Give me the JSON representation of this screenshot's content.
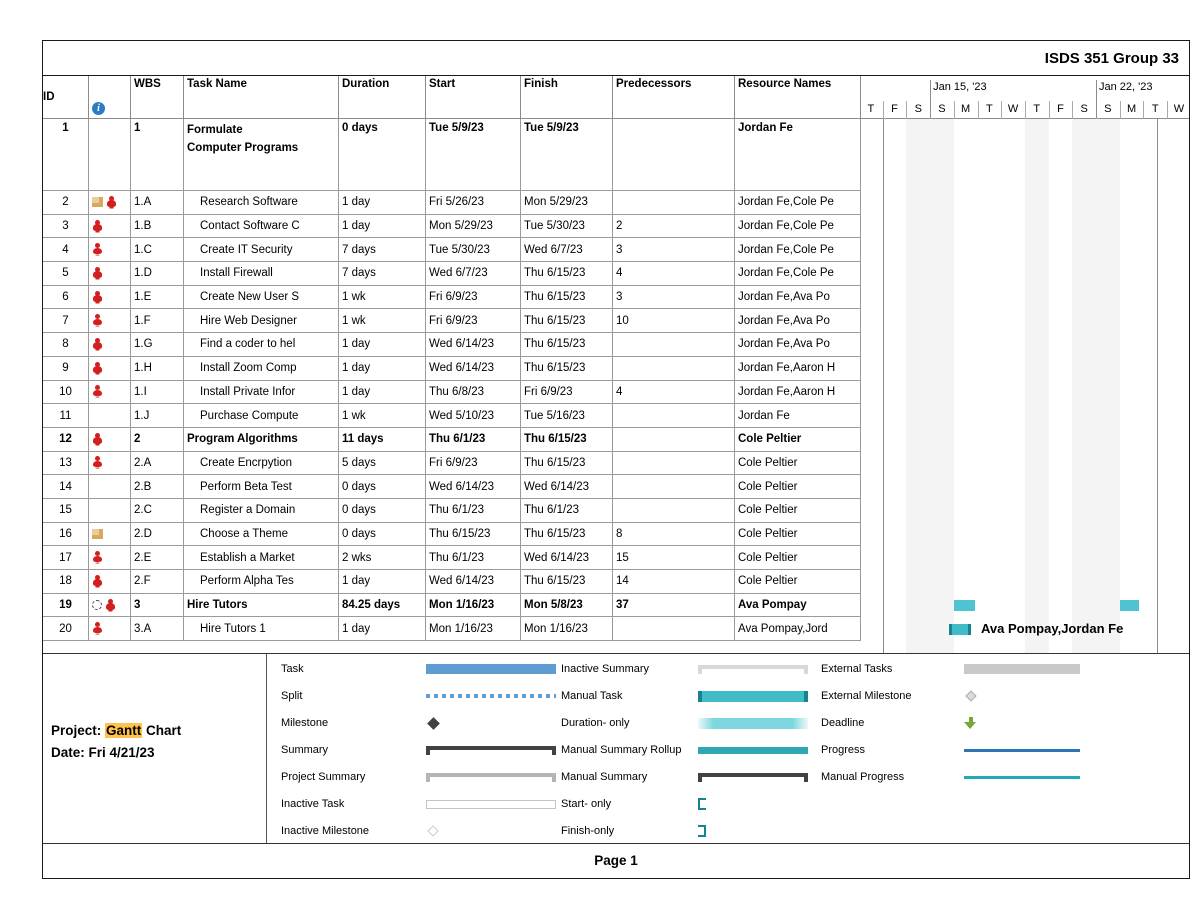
{
  "header": {
    "report_title": "ISDS 351 Group 33"
  },
  "icons": {
    "info_glyph": "i"
  },
  "table": {
    "columns": [
      "ID",
      "",
      "WBS",
      "Task Name",
      "Duration",
      "Start",
      "Finish",
      "Predecessors",
      "Resource Names"
    ],
    "rows": [
      {
        "id": "1",
        "wbs": "1",
        "name": "Formulate\nComputer Programs",
        "duration": "0 days",
        "start": "Tue 5/9/23",
        "finish": "Tue 5/9/23",
        "pred": "",
        "res": "Jordan Fe",
        "summary": true,
        "icons": []
      },
      {
        "id": "2",
        "wbs": "1.A",
        "name": "Research Software",
        "duration": "1 day",
        "start": "Fri 5/26/23",
        "finish": "Mon 5/29/23",
        "pred": "",
        "res": "Jordan Fe,Cole Pe",
        "summary": false,
        "icons": [
          "note",
          "overallocated"
        ]
      },
      {
        "id": "3",
        "wbs": "1.B",
        "name": "Contact Software C",
        "duration": "1 day",
        "start": "Mon 5/29/23",
        "finish": "Tue 5/30/23",
        "pred": "2",
        "res": "Jordan Fe,Cole Pe",
        "summary": false,
        "icons": [
          "overallocated"
        ]
      },
      {
        "id": "4",
        "wbs": "1.C",
        "name": "Create IT Security",
        "duration": "7 days",
        "start": "Tue 5/30/23",
        "finish": "Wed 6/7/23",
        "pred": "3",
        "res": "Jordan Fe,Cole Pe",
        "summary": false,
        "icons": [
          "overallocated"
        ]
      },
      {
        "id": "5",
        "wbs": "1.D",
        "name": "Install Firewall",
        "duration": "7 days",
        "start": "Wed 6/7/23",
        "finish": "Thu 6/15/23",
        "pred": "4",
        "res": "Jordan Fe,Cole Pe",
        "summary": false,
        "icons": [
          "overallocated"
        ]
      },
      {
        "id": "6",
        "wbs": "1.E",
        "name": "Create New User S",
        "duration": "1 wk",
        "start": "Fri 6/9/23",
        "finish": "Thu 6/15/23",
        "pred": "3",
        "res": "Jordan Fe,Ava Po",
        "summary": false,
        "icons": [
          "overallocated"
        ]
      },
      {
        "id": "7",
        "wbs": "1.F",
        "name": "Hire Web Designer",
        "duration": "1 wk",
        "start": "Fri 6/9/23",
        "finish": "Thu 6/15/23",
        "pred": "10",
        "res": "Jordan Fe,Ava Po",
        "summary": false,
        "icons": [
          "overallocated"
        ]
      },
      {
        "id": "8",
        "wbs": "1.G",
        "name": "Find a coder to hel",
        "duration": "1 day",
        "start": "Wed 6/14/23",
        "finish": "Thu 6/15/23",
        "pred": "",
        "res": "Jordan Fe,Ava Po",
        "summary": false,
        "icons": [
          "overallocated"
        ]
      },
      {
        "id": "9",
        "wbs": "1.H",
        "name": "Install Zoom Comp",
        "duration": "1 day",
        "start": "Wed 6/14/23",
        "finish": "Thu 6/15/23",
        "pred": "",
        "res": "Jordan Fe,Aaron H",
        "summary": false,
        "icons": [
          "overallocated"
        ]
      },
      {
        "id": "10",
        "wbs": "1.I",
        "name": "Install Private Infor",
        "duration": "1 day",
        "start": "Thu 6/8/23",
        "finish": "Fri 6/9/23",
        "pred": "4",
        "res": "Jordan Fe,Aaron H",
        "summary": false,
        "icons": [
          "overallocated"
        ]
      },
      {
        "id": "11",
        "wbs": "1.J",
        "name": "Purchase Compute",
        "duration": "1 wk",
        "start": "Wed 5/10/23",
        "finish": "Tue 5/16/23",
        "pred": "",
        "res": "Jordan Fe",
        "summary": false,
        "icons": []
      },
      {
        "id": "12",
        "wbs": "2",
        "name": "Program Algorithms",
        "duration": "11 days",
        "start": "Thu 6/1/23",
        "finish": "Thu 6/15/23",
        "pred": "",
        "res": "Cole Peltier",
        "summary": true,
        "icons": [
          "overallocated"
        ]
      },
      {
        "id": "13",
        "wbs": "2.A",
        "name": "Create Encrpytion",
        "duration": "5 days",
        "start": "Fri 6/9/23",
        "finish": "Thu 6/15/23",
        "pred": "",
        "res": "Cole Peltier",
        "summary": false,
        "icons": [
          "overallocated"
        ]
      },
      {
        "id": "14",
        "wbs": "2.B",
        "name": "Perform Beta Test",
        "duration": "0 days",
        "start": "Wed 6/14/23",
        "finish": "Wed 6/14/23",
        "pred": "",
        "res": "Cole Peltier",
        "summary": false,
        "icons": []
      },
      {
        "id": "15",
        "wbs": "2.C",
        "name": "Register a Domain",
        "duration": "0 days",
        "start": "Thu 6/1/23",
        "finish": "Thu 6/1/23",
        "pred": "",
        "res": "Cole Peltier",
        "summary": false,
        "icons": []
      },
      {
        "id": "16",
        "wbs": "2.D",
        "name": "Choose a Theme",
        "duration": "0 days",
        "start": "Thu 6/15/23",
        "finish": "Thu 6/15/23",
        "pred": "8",
        "res": "Cole Peltier",
        "summary": false,
        "icons": [
          "note"
        ]
      },
      {
        "id": "17",
        "wbs": "2.E",
        "name": "Establish a Market",
        "duration": "2 wks",
        "start": "Thu 6/1/23",
        "finish": "Wed 6/14/23",
        "pred": "15",
        "res": "Cole Peltier",
        "summary": false,
        "icons": [
          "overallocated"
        ]
      },
      {
        "id": "18",
        "wbs": "2.F",
        "name": "Perform Alpha Tes",
        "duration": "1 day",
        "start": "Wed 6/14/23",
        "finish": "Thu 6/15/23",
        "pred": "14",
        "res": "Cole Peltier",
        "summary": false,
        "icons": [
          "overallocated"
        ]
      },
      {
        "id": "19",
        "wbs": "3",
        "name": "Hire Tutors",
        "duration": "84.25 days",
        "start": "Mon 1/16/23",
        "finish": "Mon 5/8/23",
        "pred": "37",
        "res": "Ava Pompay",
        "summary": true,
        "icons": [
          "recurring",
          "overallocated"
        ]
      },
      {
        "id": "20",
        "wbs": "3.A",
        "name": "Hire Tutors 1",
        "duration": "1 day",
        "start": "Mon 1/16/23",
        "finish": "Mon 1/16/23",
        "pred": "",
        "res": "Ava Pompay,Jord",
        "summary": false,
        "icons": [
          "overallocated"
        ]
      }
    ]
  },
  "timeline": {
    "weeks": [
      {
        "label": "Jan 15, '23",
        "start_day_index": 3
      },
      {
        "label": "Jan 22, '23",
        "start_day_index": 10
      }
    ],
    "days": [
      "T",
      "F",
      "S",
      "S",
      "M",
      "T",
      "W",
      "T",
      "F",
      "S",
      "S",
      "M",
      "T",
      "W"
    ],
    "nonworking_day_indices": [
      2,
      3,
      7,
      9,
      10
    ]
  },
  "gantt": {
    "bars": [
      {
        "task_id": "19",
        "style": "manual-summary-rollup"
      },
      {
        "task_id": "19",
        "style": "manual-summary-rollup"
      },
      {
        "task_id": "20",
        "style": "manual-task",
        "label": "Ava Pompay,Jordan Fe"
      }
    ]
  },
  "legend": {
    "columns": [
      [
        {
          "label": "Task",
          "swatch": "task-bar"
        },
        {
          "label": "Split",
          "swatch": "split-dots"
        },
        {
          "label": "Milestone",
          "swatch": "milestone-diamond"
        },
        {
          "label": "Summary",
          "swatch": "summary-bar"
        },
        {
          "label": "Project Summary",
          "swatch": "project-summary-bar"
        },
        {
          "label": "Inactive Task",
          "swatch": "inactive-task-bar"
        },
        {
          "label": "Inactive Milestone",
          "swatch": "inactive-milestone-diamond"
        }
      ],
      [
        {
          "label": "Inactive Summary",
          "swatch": "inactive-summary-bar"
        },
        {
          "label": "Manual Task",
          "swatch": "manual-task-bar"
        },
        {
          "label": "Duration- only",
          "swatch": "duration-only-bar"
        },
        {
          "label": "Manual Summary Rollup",
          "swatch": "manual-summary-rollup-bar"
        },
        {
          "label": "Manual Summary",
          "swatch": "manual-summary-bar"
        },
        {
          "label": "Start- only",
          "swatch": "start-only-bracket"
        },
        {
          "label": "Finish-only",
          "swatch": "finish-only-bracket"
        }
      ],
      [
        {
          "label": "External Tasks",
          "swatch": "external-tasks-bar"
        },
        {
          "label": "External Milestone",
          "swatch": "external-milestone-diamond"
        },
        {
          "label": "Deadline",
          "swatch": "deadline-arrow"
        },
        {
          "label": "Progress",
          "swatch": "progress-line"
        },
        {
          "label": "Manual Progress",
          "swatch": "manual-progress-line"
        }
      ]
    ]
  },
  "footer": {
    "project_label": "Project:",
    "project_name_highlighted": "Gantt",
    "project_name_rest": "Chart",
    "date_line": "Date: Fri 4/21/23",
    "page_label": "Page 1"
  },
  "colors": {
    "task_blue": "#5E9CD3",
    "manual_teal": "#3FBCC8",
    "manual_teal_dark": "#17838F",
    "rollup_teal": "#4FC3D1",
    "progress_blue": "#2E75B6",
    "manual_progress_teal": "#22A8B8",
    "deadline_green": "#76A832",
    "external_gray": "#C9C9C9",
    "summary_dark": "#424242",
    "overallocated_red": "#D21F1F",
    "note_tan": "#E8CE9A",
    "highlight_amber": "#FFC24D",
    "info_blue": "#2F7BC3",
    "weekend_shade": "#F4F4F4"
  }
}
